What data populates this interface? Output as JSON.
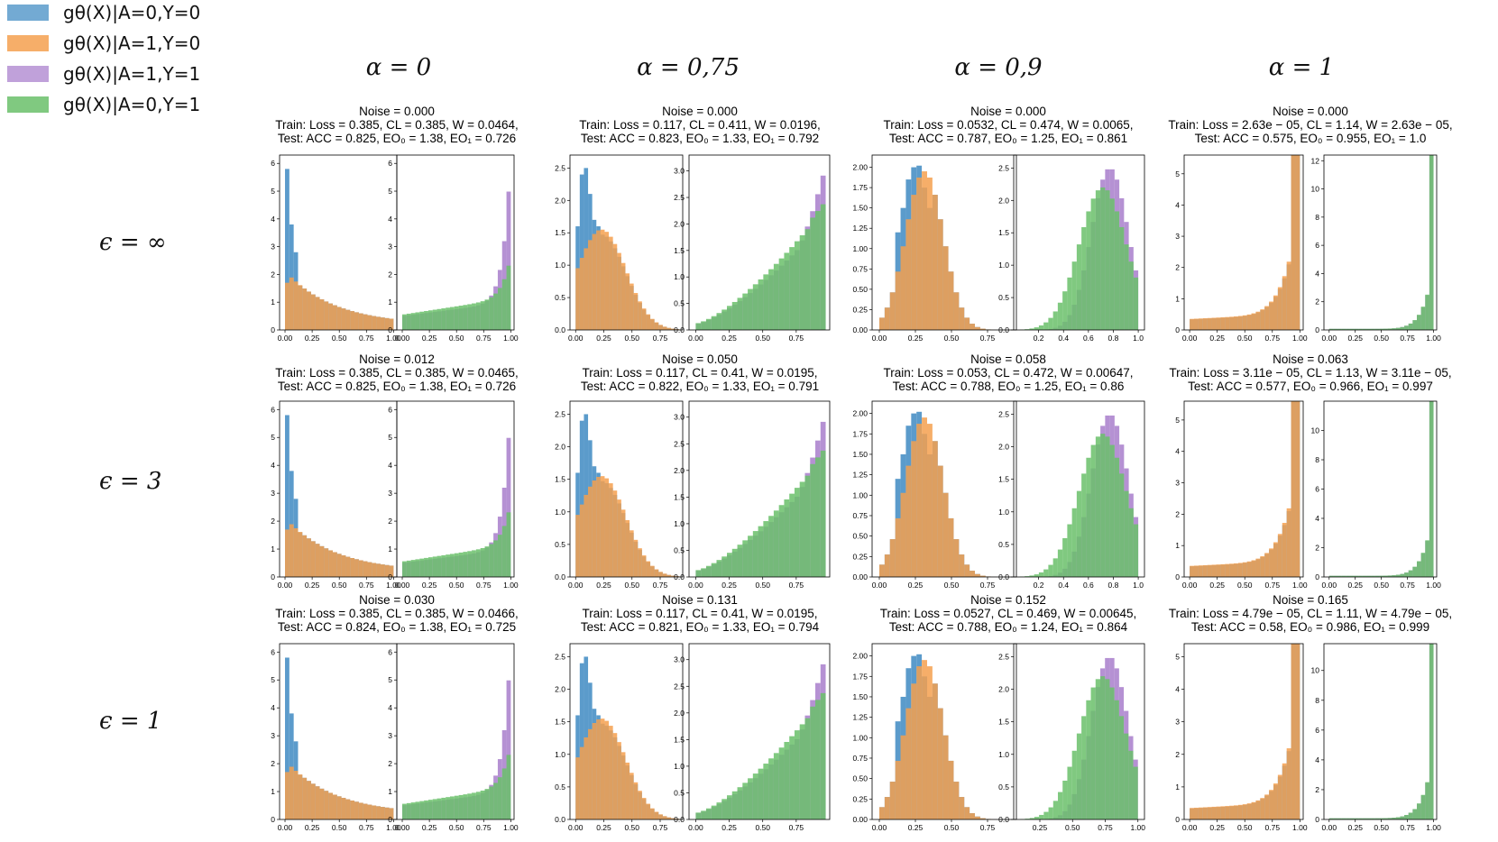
{
  "legend": [
    {
      "label": "gθ(X)|A=0,Y=0",
      "color": "#5b9bcb"
    },
    {
      "label": "gθ(X)|A=1,Y=0",
      "color": "#f5a04f"
    },
    {
      "label": "gθ(X)|A=1,Y=1",
      "color": "#b591d3"
    },
    {
      "label": "gθ(X)|A=0,Y=1",
      "color": "#6abf6a"
    }
  ],
  "column_headers": [
    "α = 0",
    "α = 0,75",
    "α = 0,9",
    "α = 1"
  ],
  "row_headers": [
    "ϵ = ∞",
    "ϵ = 3",
    "ϵ = 1"
  ],
  "chart_data": [
    {
      "type": "bar",
      "row": 0,
      "col": 0,
      "title": [
        "Noise = 0.000",
        "Train: Loss = 0.385, CL = 0.385,  W = 0.0464,",
        "Test: ACC = 0.825, EO₀ = 1.38, EO₁ = 0.726"
      ],
      "left": {
        "ylim": [
          0,
          6.3
        ],
        "yticks": [
          0,
          1,
          2,
          3,
          4,
          5,
          6
        ],
        "xlim": [
          -0.05,
          1.03
        ],
        "xticks": [
          "0.00",
          "0.25",
          "0.50",
          "0.75",
          "1.00"
        ]
      },
      "right": {
        "ylim": [
          0,
          6.3
        ],
        "yticks": [
          0,
          1,
          2,
          3,
          4,
          5,
          6
        ],
        "xlim": [
          -0.05,
          1.03
        ],
        "xticks": [
          "0.00",
          "0.25",
          "0.50",
          "0.75",
          "1.00"
        ]
      }
    },
    {
      "type": "bar",
      "row": 0,
      "col": 1,
      "title": [
        "Noise = 0.000",
        "Train: Loss = 0.117, CL = 0.411,  W = 0.0196,",
        "Test: ACC = 0.823, EO₀ = 1.33, EO₁ = 0.792"
      ],
      "left": {
        "ylim": [
          0,
          2.7
        ],
        "yticks": [
          "0.0",
          "0.5",
          "1.0",
          "1.5",
          "2.0",
          "2.5"
        ],
        "xlim": [
          -0.05,
          0.95
        ],
        "xticks": [
          "0.00",
          "0.25",
          "0.50",
          "0.75"
        ]
      },
      "right": {
        "ylim": [
          0,
          3.3
        ],
        "yticks": [
          "0.0",
          "0.5",
          "1.0",
          "1.5",
          "2.0",
          "2.5",
          "3.0"
        ],
        "xlim": [
          -0.05,
          1.0
        ],
        "xticks": [
          "0.00",
          "0.25",
          "0.50",
          "0.75"
        ]
      }
    },
    {
      "type": "bar",
      "row": 0,
      "col": 2,
      "title": [
        "Noise = 0.000",
        "Train: Loss = 0.0532, CL = 0.474,  W = 0.0065,",
        "Test: ACC = 0.787, EO₀ = 1.25, EO₁ = 0.861"
      ],
      "left": {
        "ylim": [
          0,
          2.15
        ],
        "yticks": [
          "0.00",
          "0.25",
          "0.50",
          "0.75",
          "1.00",
          "1.25",
          "1.50",
          "1.75",
          "2.00"
        ],
        "xlim": [
          -0.05,
          0.95
        ],
        "xticks": [
          "0.00",
          "0.25",
          "0.50",
          "0.75"
        ]
      },
      "right": {
        "ylim": [
          0,
          2.7
        ],
        "yticks": [
          "0.0",
          "0.5",
          "1.0",
          "1.5",
          "2.0",
          "2.5"
        ],
        "xlim": [
          0.0,
          1.05
        ],
        "xticks": [
          "0.2",
          "0.4",
          "0.6",
          "0.8",
          "1.0"
        ]
      }
    },
    {
      "type": "bar",
      "row": 0,
      "col": 3,
      "title": [
        "Noise = 0.000",
        "Train: Loss = 2.63e − 05, CL = 1.14,  W = 2.63e − 05,",
        "Test: ACC = 0.575, EO₀ = 0.955, EO₁ = 1.0"
      ],
      "left": {
        "ylim": [
          0,
          5.6
        ],
        "yticks": [
          0,
          1,
          2,
          3,
          4,
          5
        ],
        "xlim": [
          -0.05,
          1.03
        ],
        "xticks": [
          "0.00",
          "0.25",
          "0.50",
          "0.75",
          "1.00"
        ]
      },
      "right": {
        "ylim": [
          0,
          12.4
        ],
        "yticks": [
          0,
          2,
          4,
          6,
          8,
          10,
          12
        ],
        "xlim": [
          -0.05,
          1.03
        ],
        "xticks": [
          "0.00",
          "0.25",
          "0.50",
          "0.75",
          "1.00"
        ]
      }
    },
    {
      "type": "bar",
      "row": 1,
      "col": 0,
      "title": [
        "Noise = 0.012",
        "Train: Loss = 0.385, CL = 0.385,  W = 0.0465,",
        "Test: ACC = 0.825, EO₀ = 1.38, EO₁ = 0.726"
      ],
      "left": {
        "ylim": [
          0,
          6.3
        ],
        "yticks": [
          0,
          1,
          2,
          3,
          4,
          5,
          6
        ],
        "xlim": [
          -0.05,
          1.03
        ],
        "xticks": [
          "0.00",
          "0.25",
          "0.50",
          "0.75",
          "1.00"
        ]
      },
      "right": {
        "ylim": [
          0,
          6.3
        ],
        "yticks": [
          0,
          1,
          2,
          3,
          4,
          5,
          6
        ],
        "xlim": [
          -0.05,
          1.03
        ],
        "xticks": [
          "0.00",
          "0.25",
          "0.50",
          "0.75",
          "1.00"
        ]
      }
    },
    {
      "type": "bar",
      "row": 1,
      "col": 1,
      "title": [
        "Noise = 0.050",
        "Train: Loss = 0.117, CL = 0.41,  W = 0.0195,",
        "Test: ACC = 0.822, EO₀ = 1.33, EO₁ = 0.791"
      ],
      "left": {
        "ylim": [
          0,
          2.7
        ],
        "yticks": [
          "0.0",
          "0.5",
          "1.0",
          "1.5",
          "2.0",
          "2.5"
        ],
        "xlim": [
          -0.05,
          0.95
        ],
        "xticks": [
          "0.00",
          "0.25",
          "0.50",
          "0.75"
        ]
      },
      "right": {
        "ylim": [
          0,
          3.3
        ],
        "yticks": [
          "0.0",
          "0.5",
          "1.0",
          "1.5",
          "2.0",
          "2.5",
          "3.0"
        ],
        "xlim": [
          -0.05,
          1.0
        ],
        "xticks": [
          "0.00",
          "0.25",
          "0.50",
          "0.75"
        ]
      }
    },
    {
      "type": "bar",
      "row": 1,
      "col": 2,
      "title": [
        "Noise = 0.058",
        "Train: Loss = 0.053, CL = 0.472,  W = 0.00647,",
        "Test: ACC = 0.788, EO₀ = 1.25, EO₁ = 0.86"
      ],
      "left": {
        "ylim": [
          0,
          2.15
        ],
        "yticks": [
          "0.00",
          "0.25",
          "0.50",
          "0.75",
          "1.00",
          "1.25",
          "1.50",
          "1.75",
          "2.00"
        ],
        "xlim": [
          -0.05,
          0.95
        ],
        "xticks": [
          "0.00",
          "0.25",
          "0.50",
          "0.75"
        ]
      },
      "right": {
        "ylim": [
          0,
          2.7
        ],
        "yticks": [
          "0.0",
          "0.5",
          "1.0",
          "1.5",
          "2.0",
          "2.5"
        ],
        "xlim": [
          0.0,
          1.05
        ],
        "xticks": [
          "0.2",
          "0.4",
          "0.6",
          "0.8",
          "1.0"
        ]
      }
    },
    {
      "type": "bar",
      "row": 1,
      "col": 3,
      "title": [
        "Noise = 0.063",
        "Train: Loss = 3.11e − 05, CL = 1.13,  W = 3.11e − 05,",
        "Test: ACC = 0.577, EO₀ = 0.966, EO₁ = 0.997"
      ],
      "left": {
        "ylim": [
          0,
          5.6
        ],
        "yticks": [
          0,
          1,
          2,
          3,
          4,
          5
        ],
        "xlim": [
          -0.05,
          1.03
        ],
        "xticks": [
          "0.00",
          "0.25",
          "0.50",
          "0.75",
          "1.00"
        ]
      },
      "right": {
        "ylim": [
          0,
          12.0
        ],
        "yticks": [
          0,
          2,
          4,
          6,
          8,
          10
        ],
        "xlim": [
          -0.05,
          1.03
        ],
        "xticks": [
          "0.00",
          "0.25",
          "0.50",
          "0.75",
          "1.00"
        ]
      }
    },
    {
      "type": "bar",
      "row": 2,
      "col": 0,
      "title": [
        "Noise = 0.030",
        "Train: Loss = 0.385, CL = 0.385,  W = 0.0466,",
        "Test: ACC = 0.824, EO₀ = 1.38, EO₁ = 0.725"
      ],
      "left": {
        "ylim": [
          0,
          6.3
        ],
        "yticks": [
          0,
          1,
          2,
          3,
          4,
          5,
          6
        ],
        "xlim": [
          -0.05,
          1.03
        ],
        "xticks": [
          "0.00",
          "0.25",
          "0.50",
          "0.75",
          "1.00"
        ]
      },
      "right": {
        "ylim": [
          0,
          6.3
        ],
        "yticks": [
          0,
          1,
          2,
          3,
          4,
          5,
          6
        ],
        "xlim": [
          -0.05,
          1.03
        ],
        "xticks": [
          "0.00",
          "0.25",
          "0.50",
          "0.75",
          "1.00"
        ]
      }
    },
    {
      "type": "bar",
      "row": 2,
      "col": 1,
      "title": [
        "Noise = 0.131",
        "Train: Loss = 0.117, CL = 0.41,  W = 0.0195,",
        "Test: ACC = 0.821, EO₀ = 1.33, EO₁ = 0.794"
      ],
      "left": {
        "ylim": [
          0,
          2.7
        ],
        "yticks": [
          "0.0",
          "0.5",
          "1.0",
          "1.5",
          "2.0",
          "2.5"
        ],
        "xlim": [
          -0.05,
          0.95
        ],
        "xticks": [
          "0.00",
          "0.25",
          "0.50",
          "0.75"
        ]
      },
      "right": {
        "ylim": [
          0,
          3.3
        ],
        "yticks": [
          "0.0",
          "0.5",
          "1.0",
          "1.5",
          "2.0",
          "2.5",
          "3.0"
        ],
        "xlim": [
          -0.05,
          1.0
        ],
        "xticks": [
          "0.00",
          "0.25",
          "0.50",
          "0.75"
        ]
      }
    },
    {
      "type": "bar",
      "row": 2,
      "col": 2,
      "title": [
        "Noise = 0.152",
        "Train: Loss = 0.0527, CL = 0.469,  W = 0.00645,",
        "Test: ACC = 0.788, EO₀ = 1.24, EO₁ = 0.864"
      ],
      "left": {
        "ylim": [
          0,
          2.15
        ],
        "yticks": [
          "0.00",
          "0.25",
          "0.50",
          "0.75",
          "1.00",
          "1.25",
          "1.50",
          "1.75",
          "2.00"
        ],
        "xlim": [
          -0.05,
          0.95
        ],
        "xticks": [
          "0.00",
          "0.25",
          "0.50",
          "0.75"
        ]
      },
      "right": {
        "ylim": [
          0,
          2.7
        ],
        "yticks": [
          "0.0",
          "0.5",
          "1.0",
          "1.5",
          "2.0",
          "2.5"
        ],
        "xlim": [
          0.05,
          1.05
        ],
        "xticks": [
          "0.25",
          "0.50",
          "0.75",
          "1.00"
        ]
      }
    },
    {
      "type": "bar",
      "row": 2,
      "col": 3,
      "title": [
        "Noise = 0.165",
        "Train: Loss = 4.79e − 05, CL = 1.11,  W = 4.79e − 05,",
        "Test: ACC = 0.58, EO₀ = 0.986, EO₁ = 0.999"
      ],
      "left": {
        "ylim": [
          0,
          5.4
        ],
        "yticks": [
          0,
          1,
          2,
          3,
          4,
          5
        ],
        "xlim": [
          -0.05,
          1.03
        ],
        "xticks": [
          "0.00",
          "0.25",
          "0.50",
          "0.75",
          "1.00"
        ]
      },
      "right": {
        "ylim": [
          0,
          11.8
        ],
        "yticks": [
          0,
          2,
          4,
          6,
          8,
          10
        ],
        "xlim": [
          -0.05,
          1.03
        ],
        "xticks": [
          "0.00",
          "0.25",
          "0.50",
          "0.75",
          "1.00"
        ]
      }
    }
  ]
}
